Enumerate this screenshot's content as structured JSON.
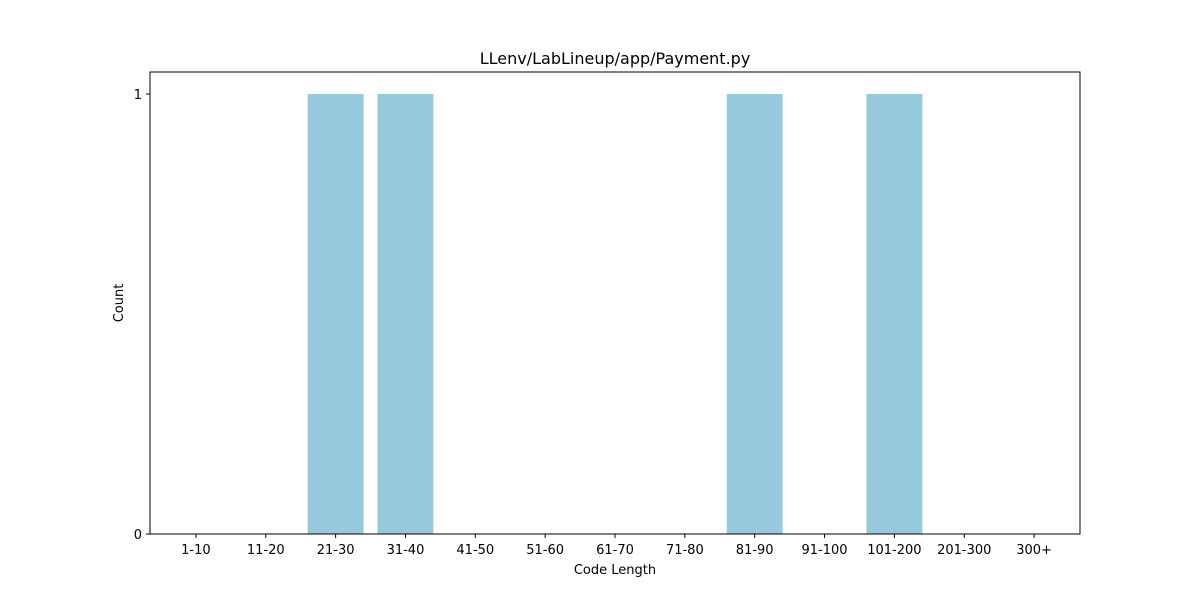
{
  "chart_data": {
    "type": "bar",
    "title": "LLenv/LabLineup/app/Payment.py",
    "xlabel": "Code Length",
    "ylabel": "Count",
    "categories": [
      "1-10",
      "11-20",
      "21-30",
      "31-40",
      "41-50",
      "51-60",
      "61-70",
      "71-80",
      "81-90",
      "91-100",
      "101-200",
      "201-300",
      "300+"
    ],
    "values": [
      0,
      0,
      1,
      1,
      0,
      0,
      0,
      0,
      1,
      0,
      1,
      0,
      0
    ],
    "ylim": [
      0,
      1.05
    ],
    "yticks": [
      "0",
      "1"
    ],
    "grid": false,
    "bar_color": "#96c9dd"
  }
}
